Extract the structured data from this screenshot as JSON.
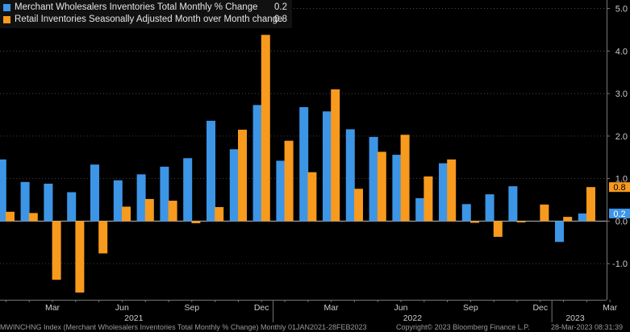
{
  "chart_data": {
    "type": "bar",
    "series": [
      {
        "name": "Merchant Wholesalers Inventories Total Monthly % Change",
        "last_value": "0.2",
        "color": "#3d95e6",
        "values": [
          1.45,
          0.92,
          0.88,
          0.68,
          1.33,
          0.96,
          1.1,
          1.28,
          1.48,
          2.36,
          1.69,
          2.73,
          1.42,
          2.68,
          2.58,
          2.16,
          1.98,
          1.56,
          0.54,
          1.36,
          0.4,
          0.63,
          0.82,
          0.0,
          -0.49,
          0.18
        ]
      },
      {
        "name": "Retail Inventories Seasonally Adjusted Month over Month change",
        "last_value": "0.8",
        "color": "#f79a1e",
        "values": [
          0.22,
          0.19,
          -1.38,
          -1.68,
          -0.76,
          0.34,
          0.52,
          0.48,
          -0.05,
          0.33,
          2.15,
          4.38,
          1.89,
          1.15,
          3.1,
          0.76,
          1.63,
          2.03,
          1.05,
          1.45,
          -0.04,
          -0.37,
          -0.03,
          0.39,
          0.1,
          0.8
        ]
      }
    ],
    "month_labels": [
      {
        "i": 2,
        "text": "Mar"
      },
      {
        "i": 5,
        "text": "Jun"
      },
      {
        "i": 8,
        "text": "Sep"
      },
      {
        "i": 11,
        "text": "Dec"
      },
      {
        "i": 14,
        "text": "Mar"
      },
      {
        "i": 17,
        "text": "Jun"
      },
      {
        "i": 20,
        "text": "Sep"
      },
      {
        "i": 23,
        "text": "Dec"
      },
      {
        "i": 26,
        "text": "Mar"
      }
    ],
    "year_labels": [
      {
        "center": 5.5,
        "text": "2021"
      },
      {
        "center": 17.5,
        "text": "2022"
      },
      {
        "center": 24.5,
        "text": "2023"
      }
    ],
    "year_separators": [
      11.5,
      23.5
    ],
    "y_ticks": [
      {
        "v": 5,
        "label": "5.0"
      },
      {
        "v": 4,
        "label": "4.0"
      },
      {
        "v": 3,
        "label": "3.0"
      },
      {
        "v": 2,
        "label": "2.0"
      },
      {
        "v": 1,
        "label": "1.0"
      },
      {
        "v": 0,
        "label": "0.0"
      },
      {
        "v": -1,
        "label": "-1.0"
      }
    ],
    "ylim": [
      -1.85,
      5.2
    ],
    "y_axis_side": "right",
    "legend_position": "top-left",
    "grid": "dotted horizontal"
  },
  "footer": {
    "ticker": "MWINCHNG Index (Merchant Wholesalers Inventories Total Monthly % Change)  Monthly 01JAN2021-28FEB2023",
    "copyright": "Copyright© 2023 Bloomberg Finance L.P.",
    "timestamp": "28-Mar-2023 08:31:39"
  }
}
